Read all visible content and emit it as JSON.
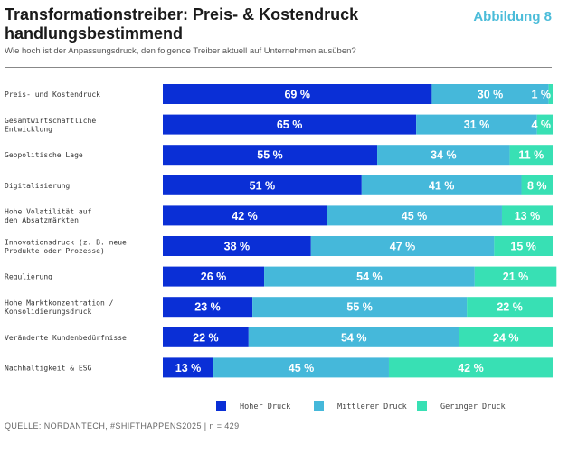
{
  "header": {
    "title": "Transformationstreiber: Preis- & Kostendruck handlungsbestimmend",
    "figure_label": "Abbildung 8",
    "subtitle": "Wie hoch ist der Anpassungsdruck, den folgende Treiber aktuell auf Unternehmen ausüben?"
  },
  "footer": {
    "source": "QUELLE: NORDANTECH, #SHIFTHAPPENS2025 | n = 429"
  },
  "colors": {
    "hoher": "#0a2fd6",
    "mittlerer": "#45b8da",
    "geringer": "#38e0b4",
    "label_text": "#ffffff"
  },
  "chart_data": {
    "type": "bar",
    "orientation": "horizontal",
    "stacked": true,
    "unit": "%",
    "legend_position": "bottom",
    "categories": [
      [
        "Preis- und Kostendruck"
      ],
      [
        "Gesamtwirtschaftliche",
        "Entwicklung"
      ],
      [
        "Geopolitische Lage"
      ],
      [
        "Digitalisierung"
      ],
      [
        "Hohe Volatilität auf",
        "den Absatzmärkten"
      ],
      [
        "Innovationsdruck (z. B. neue",
        "Produkte oder Prozesse)"
      ],
      [
        "Regulierung"
      ],
      [
        "Hohe Marktkonzentration /",
        "Konsolidierungsdruck"
      ],
      [
        "Veränderte Kundenbedürfnisse"
      ],
      [
        "Nachhaltigkeit & ESG"
      ]
    ],
    "series": [
      {
        "name": "Hoher Druck",
        "key": "hoher",
        "values": [
          69,
          65,
          55,
          51,
          42,
          38,
          26,
          23,
          22,
          13
        ]
      },
      {
        "name": "Mittlerer Druck",
        "key": "mittlerer",
        "values": [
          30,
          31,
          34,
          41,
          45,
          47,
          54,
          55,
          54,
          45
        ]
      },
      {
        "name": "Geringer Druck",
        "key": "geringer",
        "values": [
          1,
          4,
          11,
          8,
          13,
          15,
          21,
          22,
          24,
          42
        ]
      }
    ]
  }
}
